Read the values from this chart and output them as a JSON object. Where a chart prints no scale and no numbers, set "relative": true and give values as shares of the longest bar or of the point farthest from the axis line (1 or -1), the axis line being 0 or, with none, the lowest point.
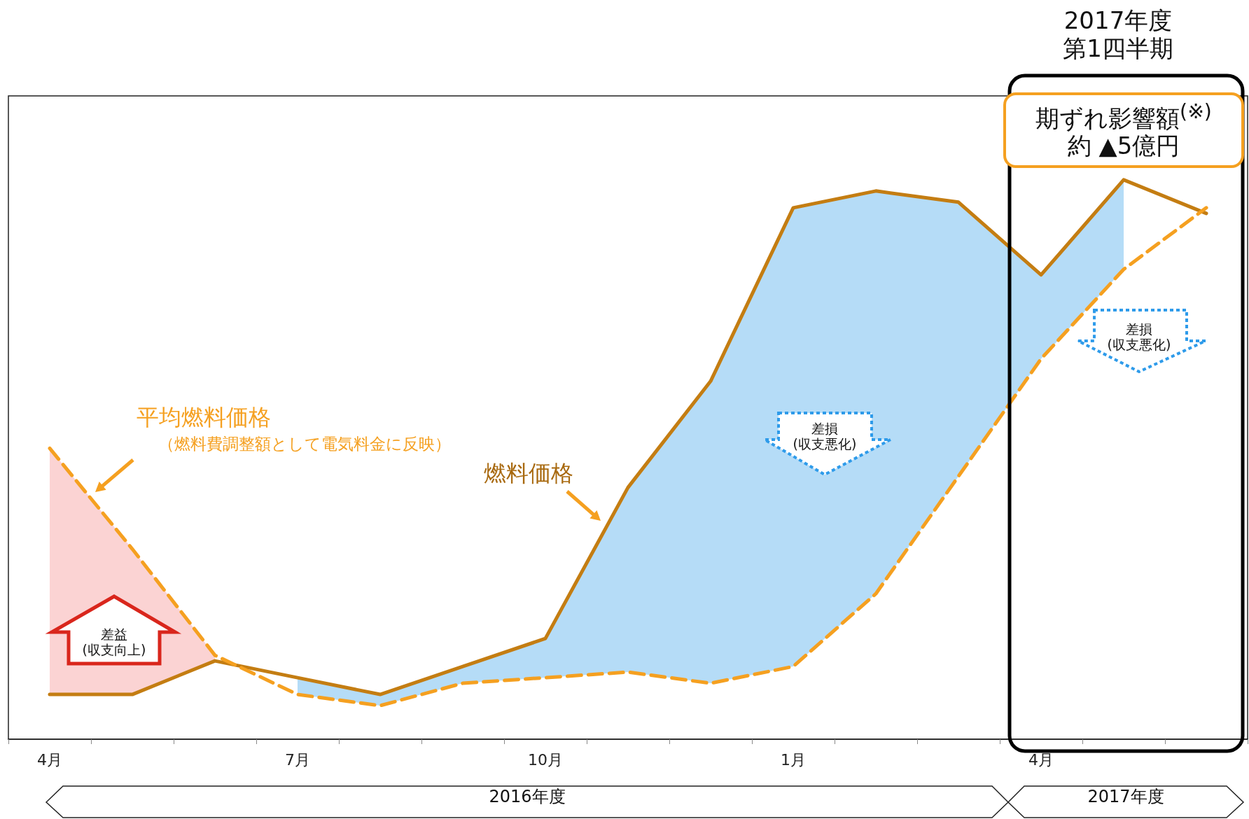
{
  "chart_data": {
    "type": "line",
    "relative": true,
    "categories": [
      "4月",
      null,
      null,
      "7月",
      null,
      null,
      "10月",
      null,
      null,
      "1月",
      null,
      null,
      "4月",
      null,
      null
    ],
    "series": [
      {
        "name": "燃料価格",
        "color": "#c47d12",
        "line_style": "solid",
        "values": [
          0.08,
          0.08,
          0.14,
          0.11,
          0.08,
          0.13,
          0.18,
          0.45,
          0.64,
          0.95,
          0.98,
          0.96,
          0.83,
          1,
          0.94
        ],
        "lower": [
          null,
          null,
          null,
          0.08,
          0.06,
          0.1,
          0.11,
          0.12,
          0.1,
          0.13,
          0.26,
          0.47,
          0.68,
          0.84,
          null
        ],
        "upper": [
          null,
          null,
          null,
          0.11,
          0.08,
          0.13,
          0.18,
          0.45,
          0.64,
          0.95,
          0.98,
          0.96,
          0.83,
          1,
          null
        ]
      },
      {
        "name": "平均燃料価格",
        "color": "#f5a020",
        "line_style": "dashed",
        "values": [
          0.52,
          0.34,
          0.15,
          0.08,
          0.06,
          0.1,
          0.11,
          0.12,
          0.1,
          0.13,
          0.26,
          0.47,
          0.68,
          0.84,
          0.95
        ],
        "lower": [
          0.08,
          0.08,
          0.14,
          null,
          null,
          null,
          null,
          null,
          null,
          null,
          null,
          null,
          null,
          null,
          null
        ],
        "upper": [
          0.52,
          0.34,
          0.15,
          null,
          null,
          null,
          null,
          null,
          null,
          null,
          null,
          null,
          null,
          null,
          null
        ]
      }
    ],
    "marker": "none",
    "legend": false,
    "grid": false,
    "tick_labels": "x",
    "annotations": [
      "（燃料費調整額として電気料金に反映）",
      "差益\n(収支向上)",
      "差損\n(収支悪化)",
      "差損\n(収支悪化)",
      "期ずれ影響額$^{(※)}$\n約 ▲5億円",
      "2017年度",
      "第1四半期",
      "2016年度",
      "2017年度"
    ]
  }
}
